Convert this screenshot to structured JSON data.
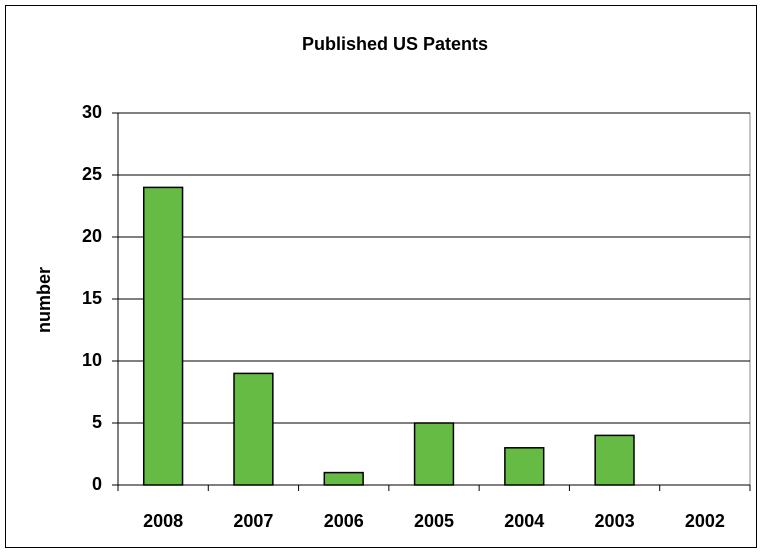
{
  "chart_data": {
    "type": "bar",
    "title": "Published US Patents",
    "y_label": "number",
    "categories": [
      "2008",
      "2007",
      "2006",
      "2005",
      "2004",
      "2003",
      "2002"
    ],
    "values": [
      24,
      9,
      1,
      5,
      3,
      4,
      0
    ],
    "color": "#66bb44",
    "ylim": [
      0,
      30
    ],
    "yticks": [
      0,
      5,
      10,
      15,
      20,
      25,
      30
    ],
    "grid": true
  }
}
